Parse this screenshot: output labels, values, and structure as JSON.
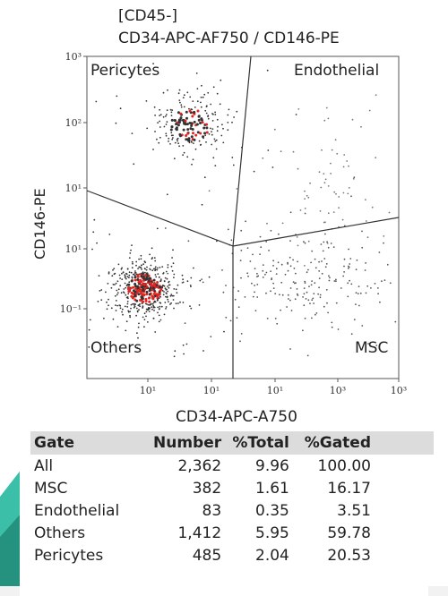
{
  "header": {
    "line1": "[CD45-]",
    "line2": "CD34-APC-AF750 / CD146-PE"
  },
  "chart_data": {
    "type": "scatter",
    "xlabel": "CD34-APC-A750",
    "ylabel": "CD146-PE",
    "x_scale": "log",
    "y_scale": "log",
    "x_tick_labels": [
      "10¹",
      "10¹",
      "10¹",
      "10³",
      "10³"
    ],
    "y_tick_labels": [
      "10³",
      "10²",
      "10¹",
      "10¹",
      "10⁻¹"
    ],
    "gate_labels": {
      "pericytes": "Pericytes",
      "endothelial": "Endothelial",
      "others": "Others",
      "msc": "MSC"
    },
    "clusters": [
      {
        "gate": "Others",
        "color": "#e52420",
        "density": "high"
      },
      {
        "gate": "Pericytes",
        "color": "#e52420",
        "density": "medium"
      },
      {
        "gate": "MSC",
        "color": "#555555",
        "density": "medium"
      },
      {
        "gate": "Endothelial",
        "color": "#777777",
        "density": "low"
      }
    ]
  },
  "stats": {
    "headers": {
      "gate": "Gate",
      "number": "Number",
      "total": "%Total",
      "gated": "%Gated"
    },
    "rows": [
      {
        "gate": "All",
        "number": "2,362",
        "total": "9.96",
        "gated": "100.00"
      },
      {
        "gate": "MSC",
        "number": "382",
        "total": "1.61",
        "gated": "16.17"
      },
      {
        "gate": "Endothelial",
        "number": "83",
        "total": "0.35",
        "gated": "3.51"
      },
      {
        "gate": "Others",
        "number": "1,412",
        "total": "5.95",
        "gated": "59.78"
      },
      {
        "gate": "Pericytes",
        "number": "485",
        "total": "2.04",
        "gated": "20.53"
      }
    ]
  },
  "colors": {
    "accent_teal": "#3bbfa8",
    "header_gray": "#dcdcdc"
  }
}
